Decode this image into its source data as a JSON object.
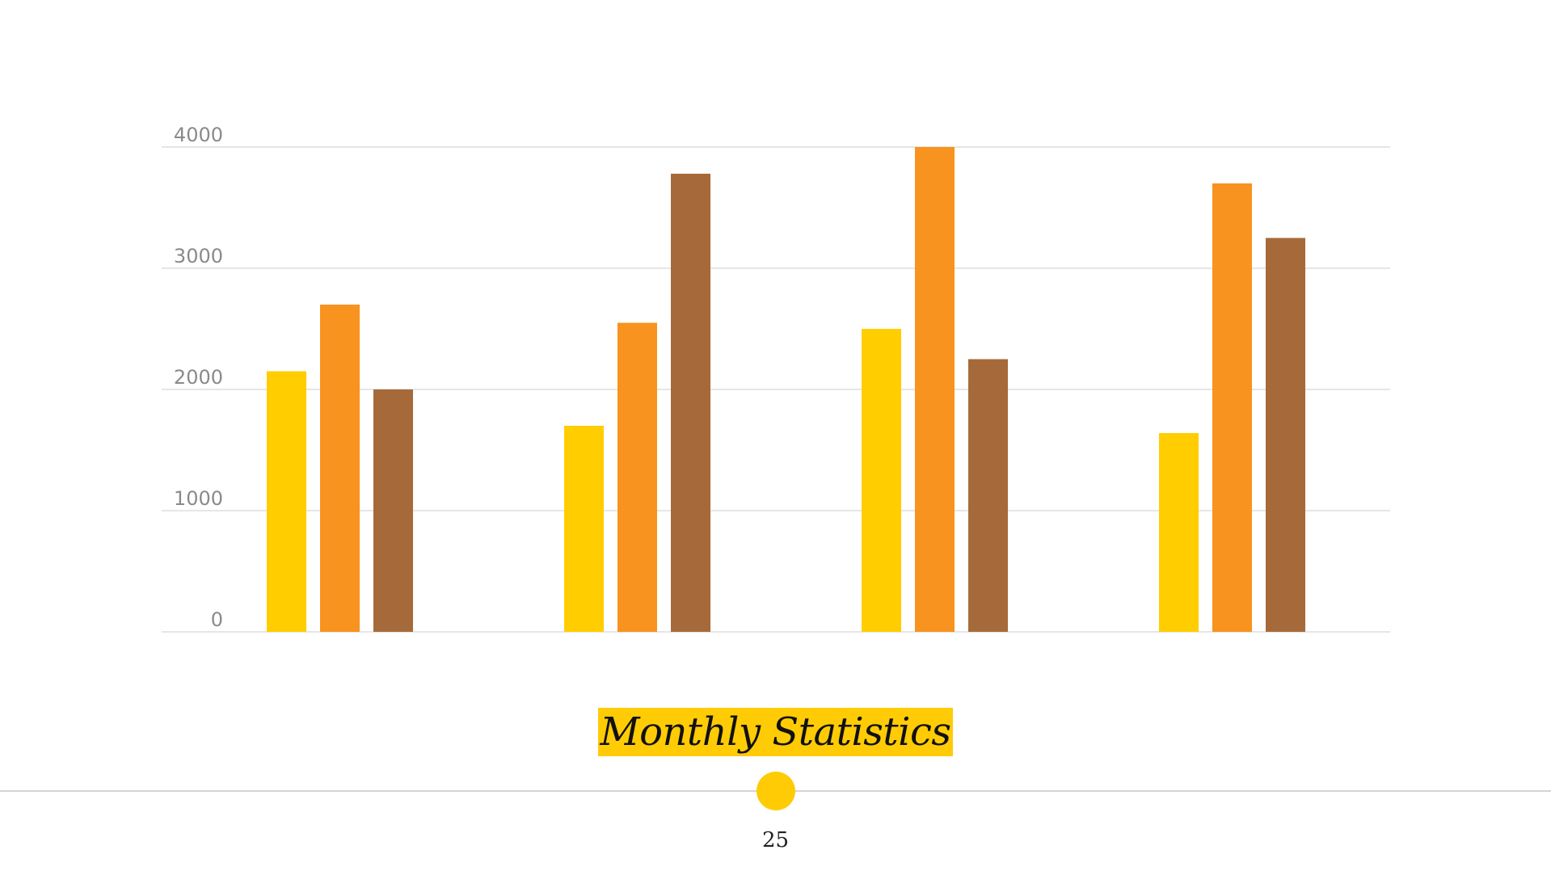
{
  "slide": {
    "title": "Monthly Statistics",
    "page_number": "25",
    "accent_color": "#ffcb05"
  },
  "chart_data": {
    "type": "bar",
    "categories": [
      "",
      "",
      "",
      ""
    ],
    "series": [
      {
        "color": "#ffcd00",
        "values": [
          2150,
          1700,
          2500,
          1640
        ]
      },
      {
        "color": "#f7931e",
        "values": [
          2700,
          2550,
          4000,
          3700
        ]
      },
      {
        "color": "#a66a3a",
        "values": [
          2000,
          3780,
          2250,
          3250
        ]
      }
    ],
    "y_ticks": [
      "0",
      "1000",
      "2000",
      "3000",
      "4000"
    ],
    "ylim": [
      0,
      4000
    ],
    "grid": true,
    "legend": "none"
  }
}
